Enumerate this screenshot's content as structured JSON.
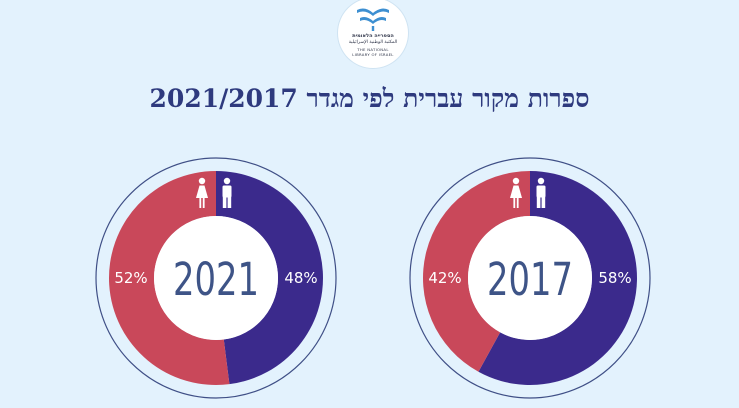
{
  "title": "ספרות מקור עברית לפי מגדר 2021/2017",
  "logo": {
    "line1": "הספרייה הלאומית",
    "line2": "المكتبة الوطنية الإسرائيلية",
    "line3": "THE NATIONAL",
    "line4": "LIBRARY OF ISRAEL"
  },
  "colors": {
    "background": "#e3f2fd",
    "men": "#3b2a8c",
    "women": "#c9485a",
    "ring_outline": "#3f4f86",
    "center_text": "#3e5487",
    "percent_text": "#ffffff"
  },
  "icons": {
    "female": "female-figure-icon",
    "male": "male-figure-icon"
  },
  "chart_data": [
    {
      "type": "pie",
      "style": "donut",
      "center_label": "2021",
      "categories": [
        "גברים",
        "נשים"
      ],
      "values": [
        48,
        52
      ],
      "labels": [
        "48%",
        "52%"
      ],
      "colors": [
        "#3b2a8c",
        "#c9485a"
      ]
    },
    {
      "type": "pie",
      "style": "donut",
      "center_label": "2017",
      "categories": [
        "גברים",
        "נשים"
      ],
      "values": [
        58,
        42
      ],
      "labels": [
        "58%",
        "42%"
      ],
      "colors": [
        "#3b2a8c",
        "#c9485a"
      ]
    }
  ]
}
